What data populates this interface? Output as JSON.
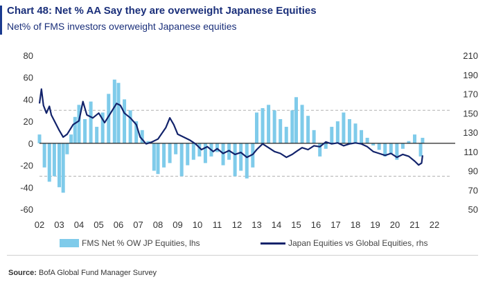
{
  "header": {
    "title": "Chart 48: Net % AA Say they are overweight Japanese Equities",
    "subtitle": "Net% of FMS investors overweight Japanese equities"
  },
  "legend": {
    "bars_label": "FMS Net % OW JP Equities, lhs",
    "line_label": "Japan Equities vs Global Equities, rhs"
  },
  "source": {
    "prefix": "Source:",
    "text": "BofA Global Fund Manager Survey"
  },
  "colors": {
    "bars": "#7fcbea",
    "line": "#12236b",
    "title": "#1a2f7a",
    "reference_lines": "#b0b0b0"
  },
  "chart_data": {
    "type": "bar+line",
    "x_tick_labels": [
      "02",
      "03",
      "04",
      "05",
      "06",
      "07",
      "08",
      "09",
      "10",
      "11",
      "12",
      "13",
      "14",
      "15",
      "16",
      "17",
      "18",
      "19",
      "20",
      "21",
      "22"
    ],
    "x_range": [
      2002.0,
      2022.0
    ],
    "y_left": {
      "ticks": [
        80,
        60,
        40,
        20,
        0,
        -20,
        -40,
        -60
      ],
      "range": [
        -60,
        80
      ]
    },
    "y_right": {
      "ticks": [
        210,
        190,
        170,
        150,
        130,
        110,
        90,
        70,
        50
      ],
      "range": [
        50,
        210
      ]
    },
    "reference_lines_lhs": [
      30,
      -30
    ],
    "series": [
      {
        "name": "FMS Net % OW JP Equities, lhs",
        "kind": "bar",
        "axis": "left",
        "points": [
          [
            2002.0,
            8
          ],
          [
            2002.25,
            -22
          ],
          [
            2002.5,
            -35
          ],
          [
            2002.75,
            -30
          ],
          [
            2003.0,
            -40
          ],
          [
            2003.2,
            -45
          ],
          [
            2003.4,
            -10
          ],
          [
            2003.6,
            8
          ],
          [
            2003.8,
            24
          ],
          [
            2004.0,
            35
          ],
          [
            2004.3,
            22
          ],
          [
            2004.6,
            38
          ],
          [
            2004.9,
            15
          ],
          [
            2005.2,
            28
          ],
          [
            2005.5,
            45
          ],
          [
            2005.8,
            58
          ],
          [
            2006.0,
            55
          ],
          [
            2006.3,
            40
          ],
          [
            2006.6,
            30
          ],
          [
            2006.9,
            20
          ],
          [
            2007.2,
            12
          ],
          [
            2007.5,
            2
          ],
          [
            2007.8,
            -25
          ],
          [
            2008.0,
            -28
          ],
          [
            2008.3,
            -22
          ],
          [
            2008.6,
            -18
          ],
          [
            2008.9,
            -10
          ],
          [
            2009.2,
            -30
          ],
          [
            2009.5,
            -20
          ],
          [
            2009.8,
            -15
          ],
          [
            2010.1,
            -12
          ],
          [
            2010.4,
            -18
          ],
          [
            2010.7,
            -12
          ],
          [
            2011.0,
            -8
          ],
          [
            2011.3,
            -20
          ],
          [
            2011.6,
            -15
          ],
          [
            2011.9,
            -30
          ],
          [
            2012.2,
            -25
          ],
          [
            2012.5,
            -32
          ],
          [
            2012.8,
            -22
          ],
          [
            2013.0,
            28
          ],
          [
            2013.3,
            32
          ],
          [
            2013.6,
            35
          ],
          [
            2013.9,
            30
          ],
          [
            2014.2,
            22
          ],
          [
            2014.5,
            15
          ],
          [
            2014.8,
            30
          ],
          [
            2015.0,
            42
          ],
          [
            2015.3,
            35
          ],
          [
            2015.6,
            25
          ],
          [
            2015.9,
            12
          ],
          [
            2016.2,
            -12
          ],
          [
            2016.5,
            -5
          ],
          [
            2016.8,
            15
          ],
          [
            2017.1,
            20
          ],
          [
            2017.4,
            28
          ],
          [
            2017.7,
            22
          ],
          [
            2018.0,
            18
          ],
          [
            2018.3,
            12
          ],
          [
            2018.6,
            5
          ],
          [
            2018.9,
            -2
          ],
          [
            2019.2,
            -6
          ],
          [
            2019.5,
            -12
          ],
          [
            2019.8,
            -10
          ],
          [
            2020.1,
            -15
          ],
          [
            2020.4,
            -5
          ],
          [
            2020.7,
            2
          ],
          [
            2021.0,
            8
          ],
          [
            2021.3,
            -12
          ],
          [
            2021.4,
            5
          ]
        ]
      },
      {
        "name": "Japan Equities vs Global Equities, rhs",
        "kind": "line",
        "axis": "right",
        "points": [
          [
            2002.0,
            160
          ],
          [
            2002.1,
            175
          ],
          [
            2002.2,
            158
          ],
          [
            2002.35,
            150
          ],
          [
            2002.5,
            157
          ],
          [
            2002.6,
            148
          ],
          [
            2002.8,
            140
          ],
          [
            2003.0,
            132
          ],
          [
            2003.2,
            125
          ],
          [
            2003.4,
            128
          ],
          [
            2003.7,
            138
          ],
          [
            2004.0,
            142
          ],
          [
            2004.2,
            162
          ],
          [
            2004.4,
            148
          ],
          [
            2004.7,
            145
          ],
          [
            2005.0,
            150
          ],
          [
            2005.3,
            140
          ],
          [
            2005.6,
            150
          ],
          [
            2005.9,
            160
          ],
          [
            2006.1,
            158
          ],
          [
            2006.3,
            150
          ],
          [
            2006.6,
            145
          ],
          [
            2006.9,
            138
          ],
          [
            2007.1,
            125
          ],
          [
            2007.4,
            118
          ],
          [
            2007.7,
            120
          ],
          [
            2008.0,
            123
          ],
          [
            2008.4,
            135
          ],
          [
            2008.6,
            145
          ],
          [
            2008.8,
            138
          ],
          [
            2009.0,
            128
          ],
          [
            2009.3,
            125
          ],
          [
            2009.6,
            122
          ],
          [
            2009.9,
            118
          ],
          [
            2010.2,
            112
          ],
          [
            2010.5,
            115
          ],
          [
            2010.8,
            110
          ],
          [
            2011.0,
            113
          ],
          [
            2011.3,
            108
          ],
          [
            2011.6,
            111
          ],
          [
            2011.9,
            107
          ],
          [
            2012.2,
            109
          ],
          [
            2012.5,
            104
          ],
          [
            2012.8,
            107
          ],
          [
            2013.0,
            112
          ],
          [
            2013.3,
            118
          ],
          [
            2013.6,
            114
          ],
          [
            2013.9,
            110
          ],
          [
            2014.2,
            108
          ],
          [
            2014.5,
            104
          ],
          [
            2014.8,
            107
          ],
          [
            2015.0,
            110
          ],
          [
            2015.3,
            114
          ],
          [
            2015.6,
            112
          ],
          [
            2015.9,
            116
          ],
          [
            2016.2,
            115
          ],
          [
            2016.5,
            120
          ],
          [
            2016.8,
            118
          ],
          [
            2017.1,
            119
          ],
          [
            2017.4,
            116
          ],
          [
            2017.7,
            118
          ],
          [
            2018.0,
            119
          ],
          [
            2018.3,
            118
          ],
          [
            2018.6,
            115
          ],
          [
            2018.9,
            110
          ],
          [
            2019.2,
            108
          ],
          [
            2019.5,
            106
          ],
          [
            2019.8,
            108
          ],
          [
            2020.1,
            104
          ],
          [
            2020.4,
            107
          ],
          [
            2020.7,
            105
          ],
          [
            2021.0,
            100
          ],
          [
            2021.2,
            96
          ],
          [
            2021.35,
            98
          ],
          [
            2021.4,
            106
          ]
        ]
      }
    ]
  }
}
